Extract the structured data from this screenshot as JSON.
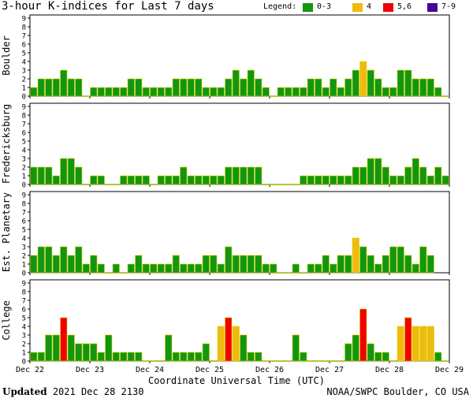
{
  "title": "3-hour K-indices for Last 7 days",
  "legend": {
    "label": "Legend:",
    "items": [
      {
        "label": "0-3",
        "color": "#129612"
      },
      {
        "label": "4",
        "color": "#F0BA10"
      },
      {
        "label": "5,6",
        "color": "#F00000"
      },
      {
        "label": "7-9",
        "color": "#4B0096"
      }
    ]
  },
  "footer": {
    "updated_label": "Updated",
    "updated_value": "2021 Dec 28 2130",
    "source": "NOAA/SWPC Boulder, CO USA"
  },
  "chart_data": {
    "type": "bar",
    "xlabel": "Coordinate Universal Time (UTC)",
    "x_ticks": [
      "Dec 22",
      "Dec 23",
      "Dec 24",
      "Dec 25",
      "Dec 26",
      "Dec 27",
      "Dec 28",
      "Dec 29"
    ],
    "ylim": [
      0,
      9
    ],
    "y_ticks": [
      0,
      1,
      2,
      3,
      4,
      5,
      6,
      7,
      8,
      9
    ],
    "interval_hours": 3,
    "grid": false,
    "panels": [
      {
        "ylabel": "Boulder",
        "values": [
          1,
          2,
          2,
          2,
          3,
          2,
          2,
          0,
          1,
          1,
          1,
          1,
          1,
          2,
          2,
          1,
          1,
          1,
          1,
          2,
          2,
          2,
          2,
          1,
          1,
          1,
          2,
          3,
          2,
          3,
          2,
          1,
          0,
          1,
          1,
          1,
          1,
          2,
          2,
          1,
          2,
          1,
          2,
          3,
          4,
          3,
          2,
          1,
          1,
          3,
          3,
          2,
          2,
          2,
          1,
          0
        ]
      },
      {
        "ylabel": "Fredericksburg",
        "values": [
          2,
          2,
          2,
          1,
          3,
          3,
          2,
          0,
          1,
          1,
          0,
          0,
          1,
          1,
          1,
          1,
          0,
          1,
          1,
          1,
          2,
          1,
          1,
          1,
          1,
          1,
          2,
          2,
          2,
          2,
          2,
          0,
          0,
          0,
          0,
          0,
          1,
          1,
          1,
          1,
          1,
          1,
          1,
          2,
          2,
          3,
          3,
          2,
          1,
          1,
          2,
          3,
          2,
          1,
          2,
          1
        ]
      },
      {
        "ylabel": "Est. Planetary",
        "values": [
          2,
          3,
          3,
          2,
          3,
          2,
          3,
          1,
          2,
          1,
          0,
          1,
          0,
          1,
          2,
          1,
          1,
          1,
          1,
          2,
          1,
          1,
          1,
          2,
          2,
          1,
          3,
          2,
          2,
          2,
          2,
          1,
          1,
          0,
          0,
          1,
          0,
          1,
          1,
          2,
          1,
          2,
          2,
          4,
          3,
          2,
          1,
          2,
          3,
          3,
          2,
          1,
          3,
          2
        ]
      },
      {
        "ylabel": "College",
        "values": [
          1,
          1,
          3,
          3,
          5,
          3,
          2,
          2,
          2,
          1,
          3,
          1,
          1,
          1,
          1,
          0,
          0,
          0,
          3,
          1,
          1,
          1,
          1,
          2,
          0,
          4,
          5,
          4,
          3,
          1,
          1,
          0,
          0,
          0,
          0,
          3,
          1,
          0,
          0,
          0,
          0,
          0,
          2,
          3,
          6,
          2,
          1,
          1,
          0,
          4,
          5,
          4,
          4,
          4,
          1,
          0
        ]
      }
    ]
  }
}
